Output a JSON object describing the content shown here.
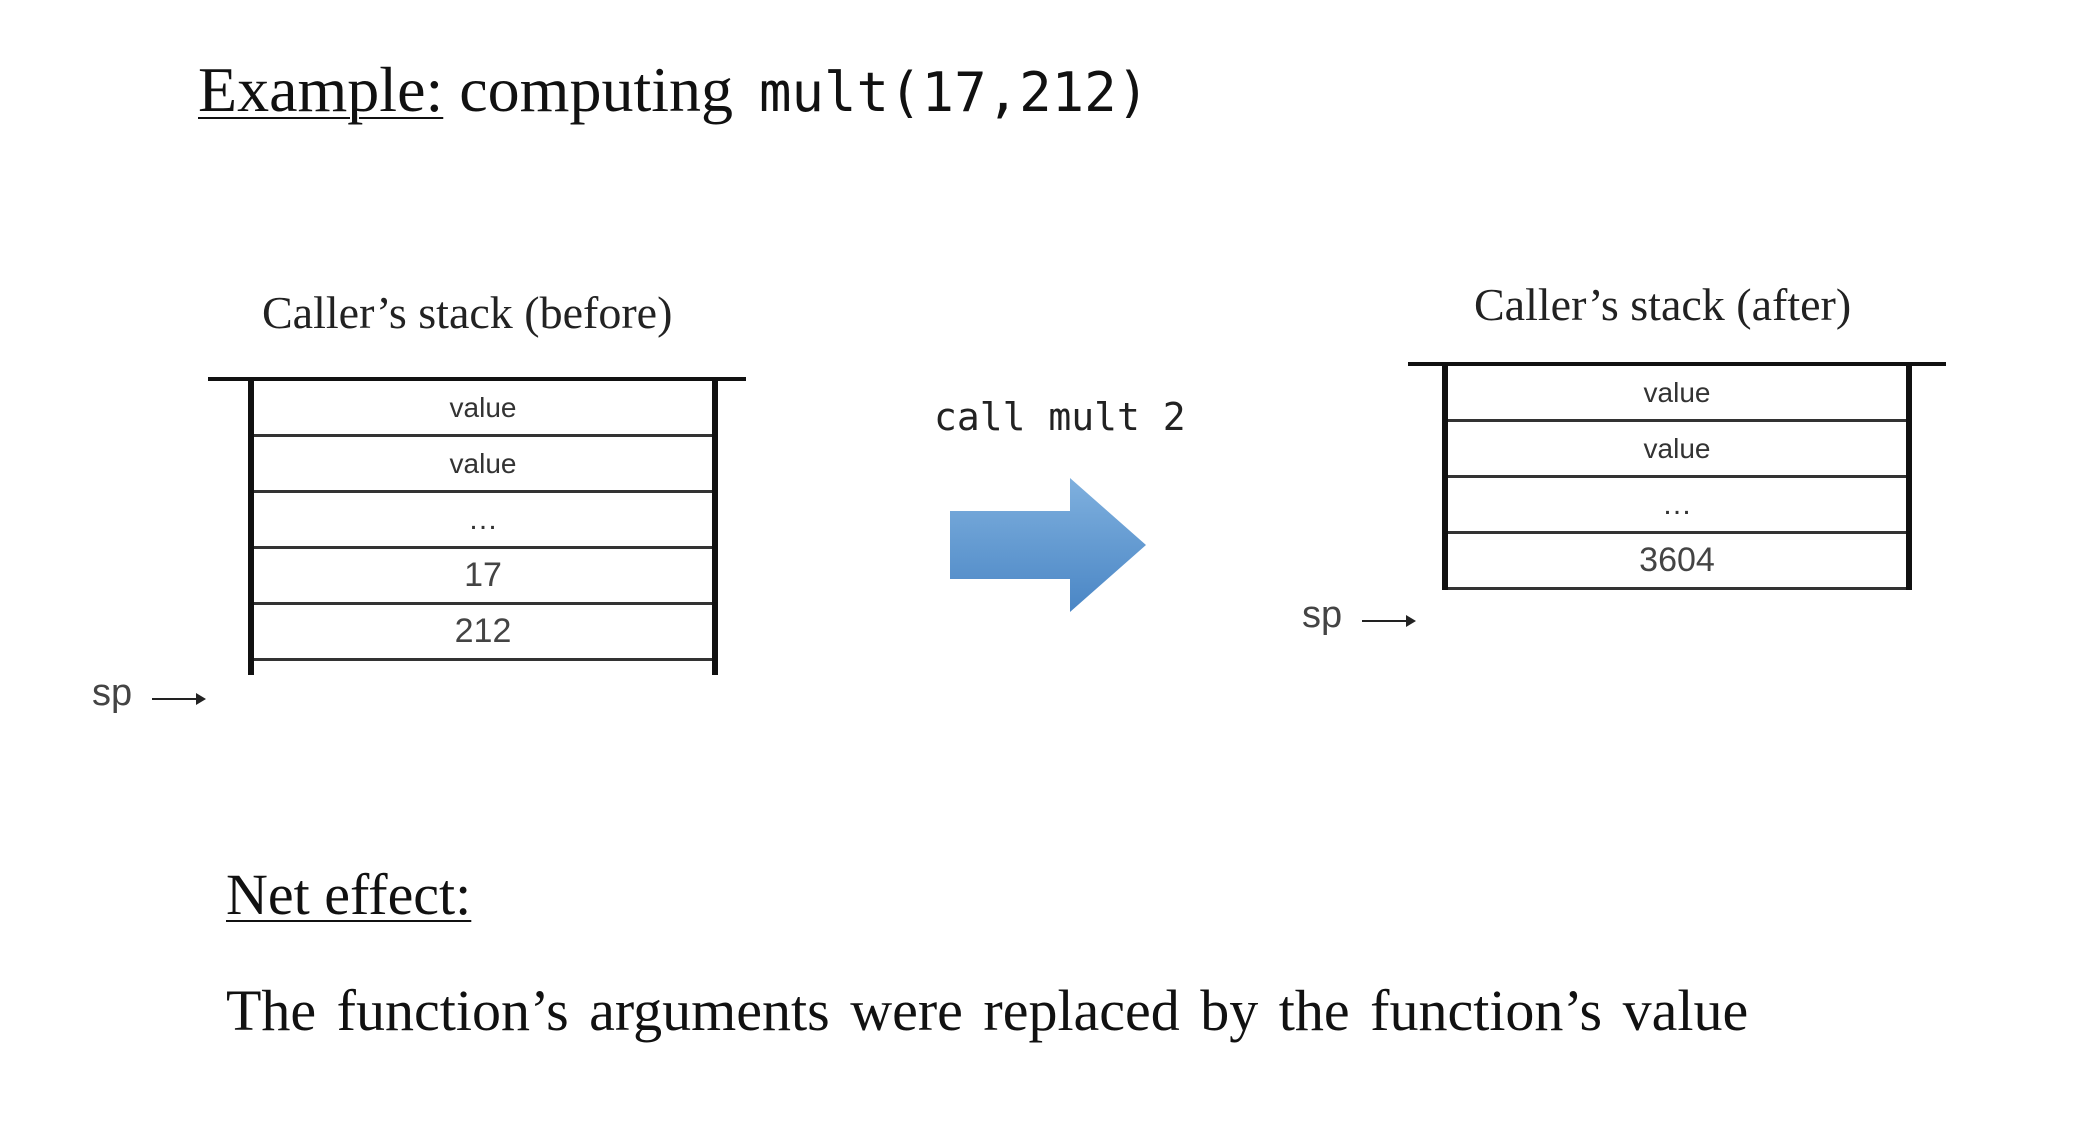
{
  "title": {
    "prefix": "Example:",
    "text": "computing",
    "code": "mult(17,212)"
  },
  "before_stack": {
    "title": "Caller’s stack (before)",
    "cells": [
      "value",
      "value",
      "…",
      "17",
      "212"
    ],
    "sp_label": "sp"
  },
  "call": {
    "label": "call mult 2",
    "arrow_color": "#5b9bd5"
  },
  "after_stack": {
    "title": "Caller’s stack (after)",
    "cells": [
      "value",
      "value",
      "…",
      "3604"
    ],
    "sp_label": "sp"
  },
  "net_effect": {
    "title": "Net effect:",
    "text": "The function’s arguments were replaced by the function’s value"
  }
}
